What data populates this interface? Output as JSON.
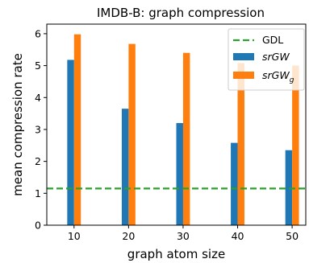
{
  "chart_data": {
    "type": "bar",
    "title": "IMDB-B: graph compression",
    "xlabel": "graph atom size",
    "ylabel": "mean compression rate",
    "categories": [
      "10",
      "20",
      "30",
      "40",
      "50"
    ],
    "x": [
      10,
      20,
      30,
      40,
      50
    ],
    "xlim": [
      5,
      52.5
    ],
    "ylim": [
      0,
      6.3
    ],
    "yticks": [
      0,
      1,
      2,
      3,
      4,
      5,
      6
    ],
    "grid": false,
    "legend_position": "top-right",
    "series": [
      {
        "name": "srGW",
        "style": "italic",
        "color": "#1f77b4",
        "values": [
          5.18,
          3.65,
          3.2,
          2.58,
          2.35
        ]
      },
      {
        "name": "srGW",
        "subscript": "g",
        "style": "italic",
        "color": "#ff7f0e",
        "values": [
          5.98,
          5.68,
          5.4,
          5.08,
          5.0
        ]
      }
    ],
    "reference_line": {
      "name": "GDL",
      "value": 1.15,
      "color": "#2ca02c",
      "style": "dashed"
    }
  }
}
